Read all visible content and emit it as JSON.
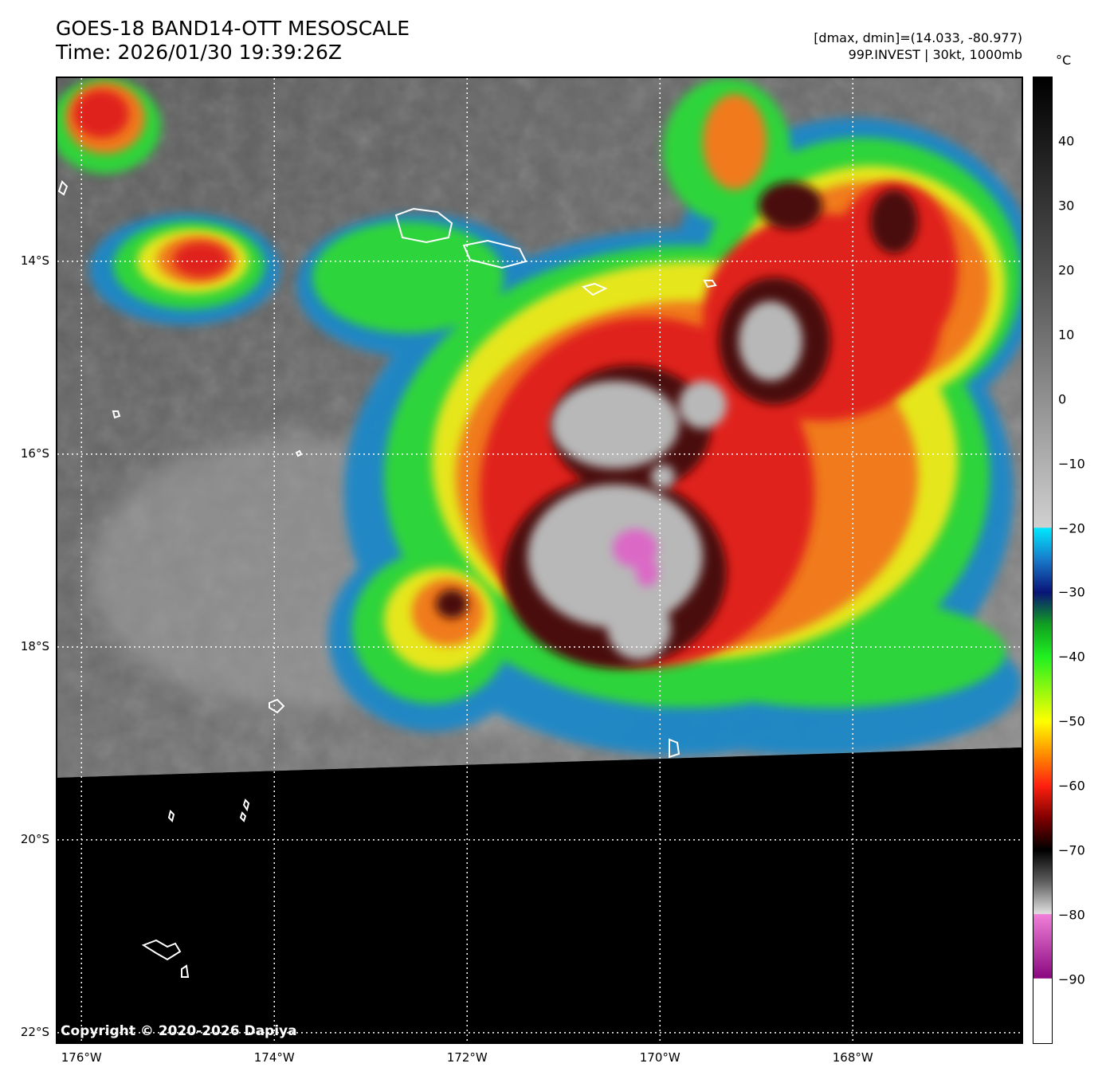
{
  "header": {
    "title_line1": "GOES-18 BAND14-OTT MESOSCALE",
    "title_line2": "Time: 2026/01/30 19:39:26Z",
    "info_line1": "[dmax, dmin]=(14.033, -80.977)",
    "info_line2": "99P.INVEST | 30kt, 1000mb"
  },
  "colorbar": {
    "unit": "°C",
    "ticks": [
      "40",
      "30",
      "20",
      "10",
      "0",
      "−10",
      "−20",
      "−30",
      "−40",
      "−50",
      "−60",
      "−70",
      "−80",
      "−90"
    ],
    "tick_values": [
      40,
      30,
      20,
      10,
      0,
      -10,
      -20,
      -30,
      -40,
      -50,
      -60,
      -70,
      -80,
      -90
    ],
    "range": [
      -100,
      50
    ]
  },
  "axes": {
    "lat_labels": [
      "14°S",
      "16°S",
      "18°S",
      "20°S",
      "22°S"
    ],
    "lat_values": [
      -14,
      -16,
      -18,
      -20,
      -22
    ],
    "lon_labels": [
      "176°W",
      "174°W",
      "172°W",
      "170°W",
      "168°W"
    ],
    "lon_values": [
      -176,
      -174,
      -172,
      -170,
      -168
    ],
    "lat_range": [
      -22.1,
      -12.1
    ],
    "lon_range": [
      -176.25,
      -166.25
    ]
  },
  "copyright": "Copyright © 2020-2026 Dapiya"
}
